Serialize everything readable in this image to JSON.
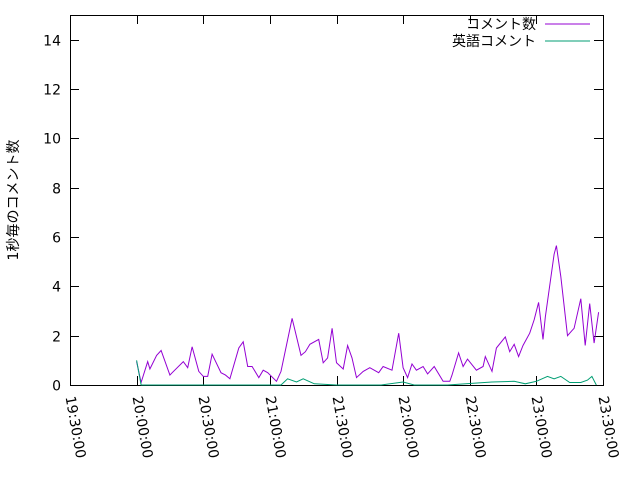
{
  "chart_data": {
    "type": "line",
    "title": "",
    "xlabel": "",
    "ylabel": "1秒毎のコメント数",
    "xlim": [
      "19:30:00",
      "23:30:00"
    ],
    "ylim": [
      0,
      15
    ],
    "x_ticks": [
      "19:30:00",
      "20:00:00",
      "20:30:00",
      "21:00:00",
      "21:30:00",
      "22:00:00",
      "22:30:00",
      "23:00:00",
      "23:30:00"
    ],
    "y_ticks": [
      "0",
      "2",
      "4",
      "6",
      "8",
      "10",
      "12",
      "14"
    ],
    "grid": false,
    "legend_position": "top-right",
    "series": [
      {
        "name": "コメント数",
        "color": "#9400d3",
        "x": [
          "20:00",
          "20:02",
          "20:05",
          "20:06",
          "20:09",
          "20:11",
          "20:15",
          "20:16",
          "20:21",
          "20:23",
          "20:25",
          "20:28",
          "20:30",
          "20:32",
          "20:34",
          "20:38",
          "20:40",
          "20:42",
          "20:46",
          "20:48",
          "20:50",
          "20:52",
          "20:55",
          "20:57",
          "20:59",
          "21:03",
          "21:05",
          "21:10",
          "21:14",
          "21:16",
          "21:18",
          "21:22",
          "21:24",
          "21:26",
          "21:28",
          "21:30",
          "21:33",
          "21:35",
          "21:37",
          "21:39",
          "21:42",
          "21:45",
          "21:49",
          "21:51",
          "21:55",
          "21:58",
          "22:00",
          "22:02",
          "22:04",
          "22:06",
          "22:09",
          "22:11",
          "22:14",
          "22:18",
          "22:21",
          "22:22",
          "22:25",
          "22:27",
          "22:29",
          "22:33",
          "22:36",
          "22:37",
          "22:40",
          "22:42",
          "22:46",
          "22:48",
          "22:50",
          "22:52",
          "22:54",
          "22:57",
          "22:59",
          "23:01",
          "23:03",
          "23:04",
          "23:08",
          "23:09",
          "23:11",
          "23:14",
          "23:16",
          "23:17",
          "23:20",
          "23:22",
          "23:24",
          "23:26",
          "23:28"
        ],
        "y": [
          0.95,
          0.1,
          0.95,
          0.65,
          1.2,
          1.4,
          0.4,
          0.5,
          0.95,
          0.7,
          1.55,
          0.55,
          0.35,
          0.35,
          1.25,
          0.5,
          0.4,
          0.25,
          1.5,
          1.75,
          0.75,
          0.75,
          0.3,
          0.6,
          0.5,
          0.15,
          0.55,
          2.7,
          1.2,
          1.35,
          1.65,
          1.85,
          0.9,
          1.1,
          2.3,
          0.9,
          0.65,
          1.6,
          1.1,
          0.3,
          0.55,
          0.7,
          0.5,
          0.75,
          0.6,
          2.1,
          0.7,
          0.3,
          0.85,
          0.6,
          0.75,
          0.45,
          0.75,
          0.15,
          0.15,
          0.4,
          1.3,
          0.75,
          1.05,
          0.6,
          0.75,
          1.15,
          0.55,
          1.5,
          1.95,
          1.35,
          1.65,
          1.15,
          1.6,
          2.1,
          2.65,
          3.35,
          1.85,
          2.75,
          5.3,
          5.65,
          4.4,
          2.0,
          2.2,
          2.3,
          3.5,
          1.6,
          3.3,
          1.7,
          2.95
        ]
      },
      {
        "name": "英語コメント",
        "color": "#009e73",
        "x": [
          "20:00",
          "20:02",
          "21:05",
          "21:08",
          "21:12",
          "21:15",
          "21:20",
          "21:30",
          "21:50",
          "22:00",
          "22:05",
          "22:20",
          "22:40",
          "22:50",
          "22:55",
          "23:00",
          "23:05",
          "23:08",
          "23:11",
          "23:15",
          "23:20",
          "23:23",
          "23:25",
          "23:27"
        ],
        "y": [
          1.0,
          0,
          0,
          0.25,
          0.12,
          0.25,
          0.05,
          0,
          0,
          0.12,
          0,
          0,
          0.12,
          0.15,
          0.05,
          0.15,
          0.35,
          0.25,
          0.35,
          0.1,
          0.1,
          0.2,
          0.35,
          0
        ]
      }
    ]
  }
}
